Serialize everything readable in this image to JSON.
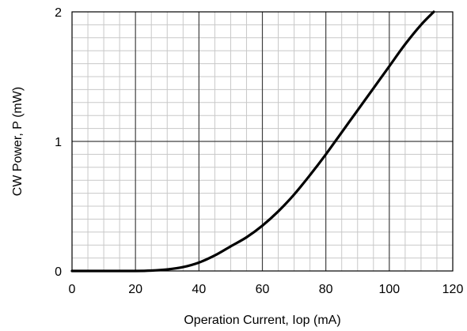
{
  "chart_data": {
    "type": "line",
    "title": "",
    "xlabel": "Operation Current, Iop (mA)",
    "ylabel": "CW Power, P (mW)",
    "xlim": [
      0,
      120
    ],
    "ylim": [
      0,
      2
    ],
    "x_ticks": [
      "0",
      "20",
      "40",
      "60",
      "80",
      "100",
      "120"
    ],
    "y_ticks": [
      "0",
      "1",
      "2"
    ],
    "grid": true,
    "minor_grid": true,
    "legend": "none",
    "line_color": "#000000",
    "series": [
      {
        "x": [
          0,
          10,
          20,
          25,
          30,
          35,
          40,
          45,
          50,
          55,
          60,
          65,
          70,
          75,
          80,
          85,
          90,
          95,
          100,
          105,
          110,
          114
        ],
        "y": [
          0,
          0,
          0,
          0.003,
          0.012,
          0.03,
          0.065,
          0.12,
          0.19,
          0.26,
          0.35,
          0.46,
          0.59,
          0.74,
          0.9,
          1.07,
          1.24,
          1.41,
          1.58,
          1.75,
          1.9,
          2.0
        ]
      }
    ]
  }
}
